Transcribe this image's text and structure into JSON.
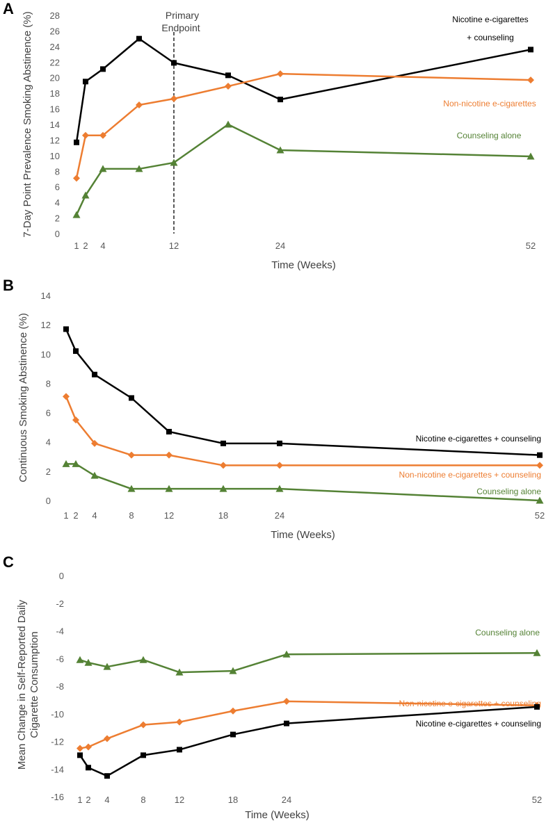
{
  "colors": {
    "nicotine": "#000000",
    "non_nicotine": "#ED7D31",
    "counseling": "#548235",
    "axis": "#808080",
    "tick_text": "#595959"
  },
  "chart_data": [
    {
      "type": "line",
      "panel": "A",
      "ylabel": "7-Day Point Prevalence Smoking Abstinence (%)",
      "xlabel": "Time (Weeks)",
      "ylim": [
        0,
        28
      ],
      "yticks": [
        0,
        2,
        4,
        6,
        8,
        10,
        12,
        14,
        16,
        18,
        20,
        22,
        24,
        26,
        28
      ],
      "xticks": [
        1,
        2,
        4,
        12,
        24,
        52
      ],
      "vline": {
        "x": 12,
        "label_line1": "Primary",
        "label_line2": "Endpoint"
      },
      "series": [
        {
          "key": "nicotine",
          "name_line1": "Nicotine e-cigarettes",
          "name_line2": "+ counseling",
          "marker": "square",
          "x": [
            1,
            2,
            4,
            8,
            12,
            18,
            24,
            52
          ],
          "values": [
            11.7,
            19.5,
            21.1,
            25,
            21.9,
            20.3,
            17.2,
            23.6
          ]
        },
        {
          "key": "non_nicotine",
          "name_line1": "Non-nicotine e-cigarettes",
          "marker": "diamond",
          "x": [
            1,
            2,
            4,
            8,
            12,
            18,
            24,
            52
          ],
          "values": [
            7.1,
            12.6,
            12.6,
            16.5,
            17.3,
            18.9,
            20.5,
            19.7
          ]
        },
        {
          "key": "counseling",
          "name_line1": "Counseling alone",
          "marker": "triangle",
          "x": [
            1,
            2,
            4,
            8,
            12,
            18,
            24,
            52
          ],
          "values": [
            2.4,
            4.9,
            8.3,
            8.3,
            9.1,
            14,
            10.7,
            9.9
          ]
        }
      ]
    },
    {
      "type": "line",
      "panel": "B",
      "ylabel": "Continuous Smoking Abstinence (%)",
      "xlabel": "Time (Weeks)",
      "ylim": [
        0,
        14
      ],
      "yticks": [
        0,
        2,
        4,
        6,
        8,
        10,
        12,
        14
      ],
      "xticks": [
        1,
        2,
        4,
        8,
        12,
        18,
        24,
        52
      ],
      "series": [
        {
          "key": "nicotine",
          "name_line1": "Nicotine e-cigarettes + counseling",
          "marker": "square",
          "x": [
            1,
            2,
            4,
            8,
            12,
            18,
            24,
            52
          ],
          "values": [
            11.7,
            10.2,
            8.6,
            7.0,
            4.7,
            3.9,
            3.9,
            3.1
          ]
        },
        {
          "key": "non_nicotine",
          "name_line1": "Non-nicotine e-cigarettes + counseling",
          "marker": "diamond",
          "x": [
            1,
            2,
            4,
            8,
            12,
            18,
            24,
            52
          ],
          "values": [
            7.1,
            5.5,
            3.9,
            3.1,
            3.1,
            2.4,
            2.4,
            2.4
          ]
        },
        {
          "key": "counseling",
          "name_line1": "Counseling alone",
          "marker": "triangle",
          "x": [
            1,
            2,
            4,
            8,
            12,
            18,
            24,
            52
          ],
          "values": [
            2.5,
            2.5,
            1.7,
            0.8,
            0.8,
            0.8,
            0.8,
            0
          ]
        }
      ]
    },
    {
      "type": "line",
      "panel": "C",
      "ylabel_line1": "Mean Change in Self-Reported Daily",
      "ylabel_line2": "Cigarette Consumption",
      "xlabel": "Time (Weeks)",
      "ylim": [
        -16,
        0
      ],
      "yticks": [
        -16,
        -14,
        -12,
        -10,
        -8,
        -6,
        -4,
        -2,
        0
      ],
      "xticks": [
        1,
        2,
        4,
        8,
        12,
        18,
        24,
        52
      ],
      "series": [
        {
          "key": "counseling",
          "name_line1": "Counseling alone",
          "marker": "triangle",
          "x": [
            1,
            2,
            4,
            8,
            12,
            18,
            24,
            52
          ],
          "values": [
            -6.1,
            -6.3,
            -6.6,
            -6.1,
            -7.0,
            -6.9,
            -5.7,
            -5.6
          ]
        },
        {
          "key": "non_nicotine",
          "name_line1": "Non-nicotine e-cigarettes + counseling",
          "marker": "diamond",
          "x": [
            1,
            2,
            4,
            8,
            12,
            18,
            24,
            52
          ],
          "values": [
            -12.5,
            -12.4,
            -11.8,
            -10.8,
            -10.6,
            -9.8,
            -9.1,
            -9.4
          ]
        },
        {
          "key": "nicotine",
          "name_line1": "Nicotine e-cigarettes + counseling",
          "marker": "square",
          "x": [
            1,
            2,
            4,
            8,
            12,
            18,
            24,
            52
          ],
          "values": [
            -13.0,
            -13.9,
            -14.5,
            -13.0,
            -12.6,
            -11.5,
            -10.7,
            -9.5
          ]
        }
      ]
    }
  ]
}
